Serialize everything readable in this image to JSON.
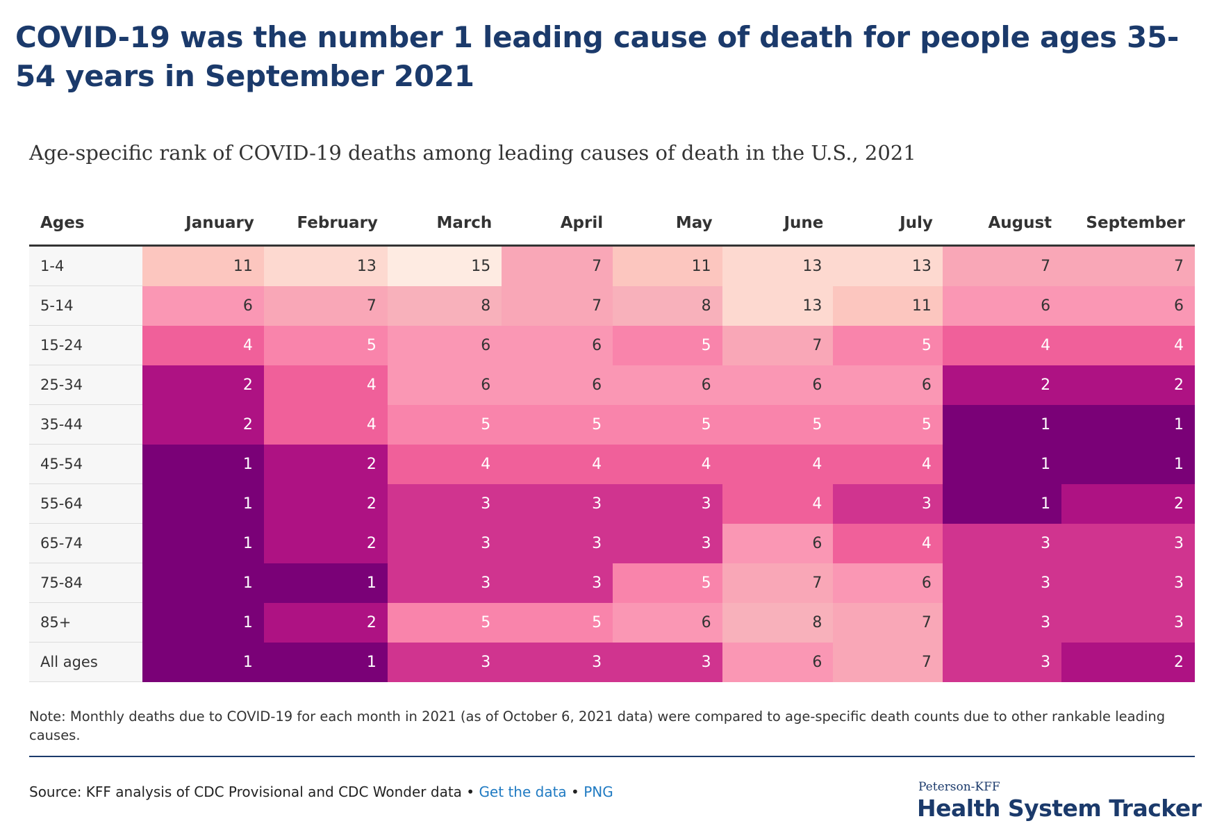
{
  "title": "COVID-19 was the number 1 leading cause of death for people ages 35-54 years in September 2021",
  "chart_data": {
    "type": "heatmap",
    "title": "Age-specific rank of COVID-19 deaths among leading causes of death in the U.S., 2021",
    "row_header": "Ages",
    "columns": [
      "January",
      "February",
      "March",
      "April",
      "May",
      "June",
      "July",
      "August",
      "September"
    ],
    "rows": [
      {
        "label": "1-4",
        "values": [
          11,
          13,
          15,
          7,
          11,
          13,
          13,
          7,
          7
        ]
      },
      {
        "label": "5-14",
        "values": [
          6,
          7,
          8,
          7,
          8,
          13,
          11,
          6,
          6
        ]
      },
      {
        "label": "15-24",
        "values": [
          4,
          5,
          6,
          6,
          5,
          7,
          5,
          4,
          4
        ]
      },
      {
        "label": "25-34",
        "values": [
          2,
          4,
          6,
          6,
          6,
          6,
          6,
          2,
          2
        ]
      },
      {
        "label": "35-44",
        "values": [
          2,
          4,
          5,
          5,
          5,
          5,
          5,
          1,
          1
        ]
      },
      {
        "label": "45-54",
        "values": [
          1,
          2,
          4,
          4,
          4,
          4,
          4,
          1,
          1
        ]
      },
      {
        "label": "55-64",
        "values": [
          1,
          2,
          3,
          3,
          3,
          4,
          3,
          1,
          2
        ]
      },
      {
        "label": "65-74",
        "values": [
          1,
          2,
          3,
          3,
          3,
          6,
          4,
          3,
          3
        ]
      },
      {
        "label": "75-84",
        "values": [
          1,
          1,
          3,
          3,
          5,
          7,
          6,
          3,
          3
        ]
      },
      {
        "label": "85+",
        "values": [
          1,
          2,
          5,
          5,
          6,
          8,
          7,
          3,
          3
        ]
      },
      {
        "label": "All ages",
        "values": [
          1,
          1,
          3,
          3,
          3,
          6,
          7,
          3,
          2
        ]
      }
    ],
    "color_scale": {
      "1": "#7a0177",
      "2": "#ae1283",
      "3": "#d0348f",
      "4": "#f0609a",
      "5": "#f984ab",
      "6": "#fa97b4",
      "7": "#f9a7b7",
      "8": "#f8b1bb",
      "11": "#fcc6bf",
      "13": "#fdd9d0",
      "15": "#feebe2"
    }
  },
  "footer": {
    "note": "Note: Monthly deaths due to COVID-19 for each month in 2021 (as of October 6, 2021 data) were compared to age-specific death counts due to other rankable leading causes.",
    "source": "Source: KFF analysis of CDC Provisional and CDC Wonder data",
    "separator": "•",
    "get_data": "Get the data",
    "png": "PNG"
  },
  "brand": {
    "small": "Peterson-KFF",
    "big": "Health System Tracker"
  }
}
